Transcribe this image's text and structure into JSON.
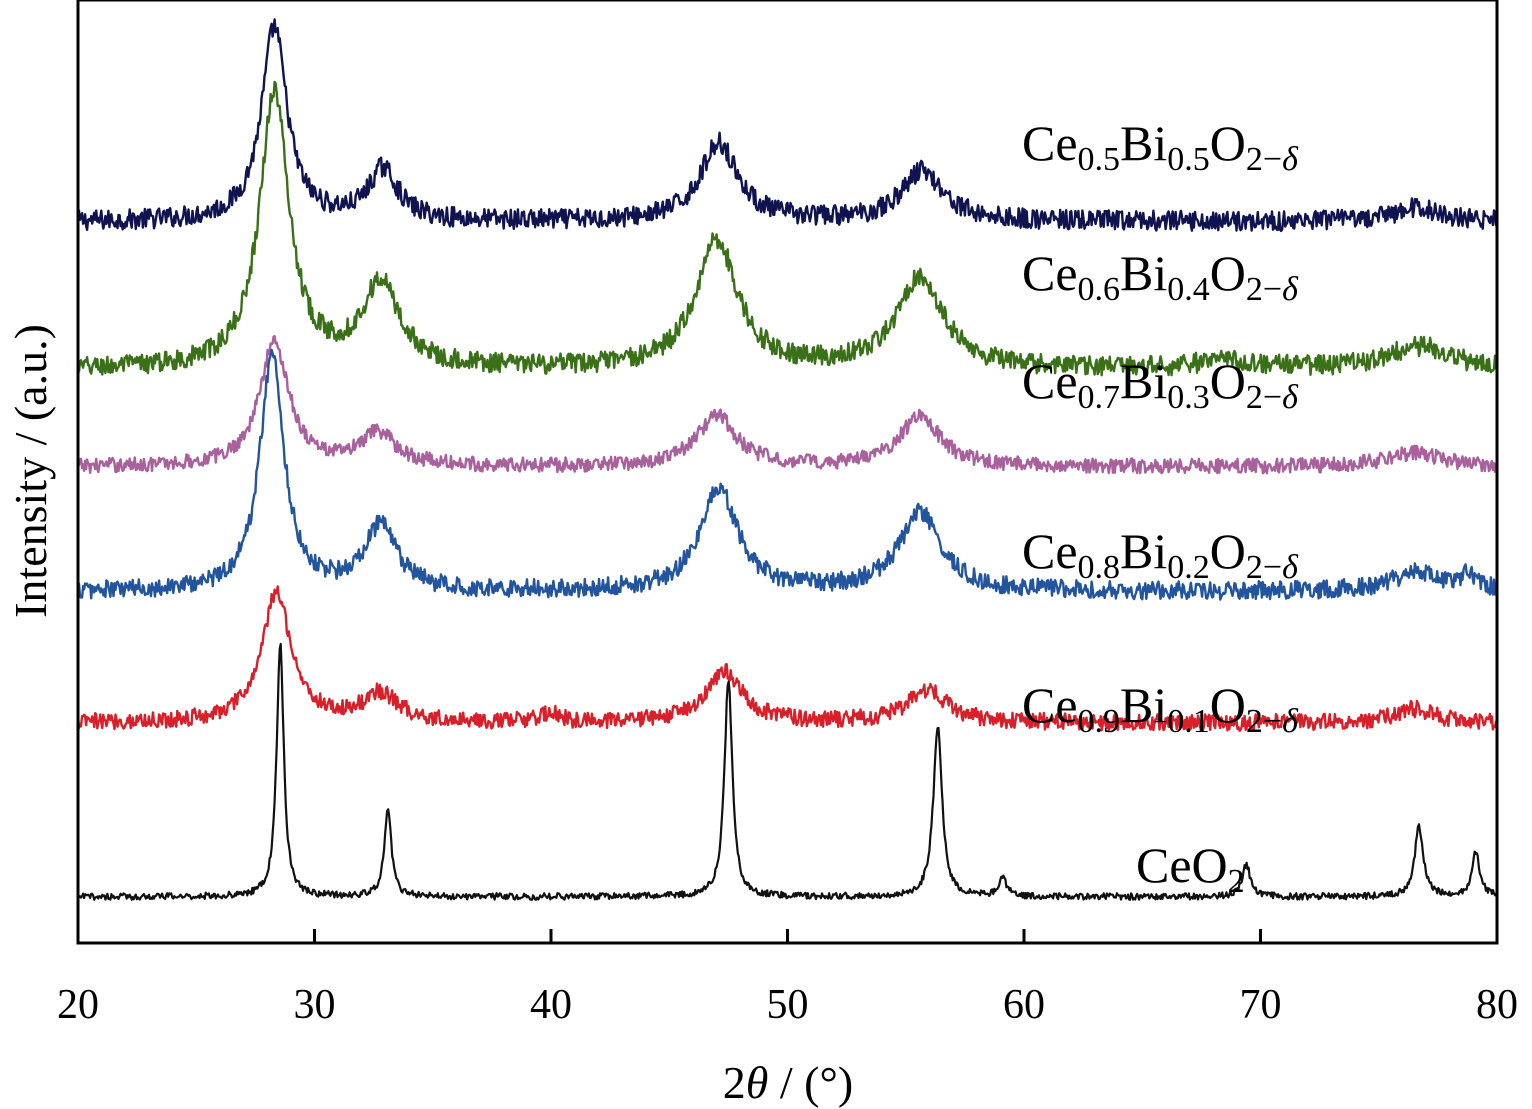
{
  "chart_data": {
    "type": "line",
    "xlabel": {
      "prefix": "2",
      "symbol": "θ",
      "suffix": " / (°)"
    },
    "ylabel": "Intensity / (a.u.)",
    "xlim": [
      20,
      80
    ],
    "xticks": [
      20,
      30,
      40,
      50,
      60,
      70,
      80
    ],
    "yticks": [],
    "grid": false,
    "legend": "none",
    "y_units": "arbitrary (stacked, offset)",
    "series": [
      {
        "name": "Ce0.5Bi0.5O2−δ",
        "label_parts": [
          [
            "Ce",
            0
          ],
          [
            "0.5",
            1
          ],
          [
            "Bi",
            0
          ],
          [
            "0.5",
            1
          ],
          [
            "O",
            0
          ],
          [
            "2−",
            1
          ],
          [
            "δ",
            2
          ]
        ],
        "color": "#0f1450",
        "baseline": 6.2,
        "noise": 0.11,
        "peaks": [
          [
            28.3,
            2.1,
            0.65
          ],
          [
            32.9,
            0.55,
            0.75
          ],
          [
            47.1,
            0.85,
            0.95
          ],
          [
            55.7,
            0.55,
            1.05
          ],
          [
            76.6,
            0.15,
            1.2
          ]
        ],
        "x": [
          20,
          28.3,
          32.9,
          47.1,
          55.7,
          80
        ],
        "y": [
          6.2,
          8.3,
          6.75,
          7.05,
          6.75,
          6.2
        ]
      },
      {
        "name": "Ce0.6Bi0.4O2−δ",
        "label_parts": [
          [
            "Ce",
            0
          ],
          [
            "0.6",
            1
          ],
          [
            "Bi",
            0
          ],
          [
            "0.4",
            1
          ],
          [
            "O",
            0
          ],
          [
            "2−",
            1
          ],
          [
            "δ",
            2
          ]
        ],
        "color": "#3a7118",
        "baseline": 4.6,
        "noise": 0.11,
        "peaks": [
          [
            28.3,
            3.0,
            0.75
          ],
          [
            32.8,
            0.9,
            0.95
          ],
          [
            47.0,
            1.4,
            1.05
          ],
          [
            55.6,
            1.0,
            1.15
          ],
          [
            68.6,
            0.1,
            1.4
          ],
          [
            76.7,
            0.25,
            1.6
          ]
        ],
        "x": [
          20,
          28.3,
          32.8,
          47.0,
          55.6,
          80
        ],
        "y": [
          4.6,
          7.6,
          5.5,
          6.0,
          5.6,
          4.6
        ]
      },
      {
        "name": "Ce0.7Bi0.3O2−δ",
        "label_parts": [
          [
            "Ce",
            0
          ],
          [
            "0.7",
            1
          ],
          [
            "Bi",
            0
          ],
          [
            "0.3",
            1
          ],
          [
            "O",
            0
          ],
          [
            "2−",
            1
          ],
          [
            "δ",
            2
          ]
        ],
        "color": "#a8619c",
        "baseline": 3.55,
        "noise": 0.08,
        "peaks": [
          [
            28.3,
            1.35,
            0.75
          ],
          [
            32.7,
            0.35,
            0.9
          ],
          [
            47.0,
            0.55,
            1.0
          ],
          [
            55.6,
            0.55,
            1.0
          ],
          [
            76.5,
            0.15,
            1.4
          ]
        ],
        "x": [
          20,
          28.3,
          32.7,
          47.0,
          55.6,
          80
        ],
        "y": [
          3.55,
          4.9,
          3.9,
          4.1,
          4.1,
          3.55
        ]
      },
      {
        "name": "Ce0.8Bi0.2O2−δ",
        "label_parts": [
          [
            "Ce",
            0
          ],
          [
            "0.8",
            1
          ],
          [
            "Bi",
            0
          ],
          [
            "0.2",
            1
          ],
          [
            "O",
            0
          ],
          [
            "2−",
            1
          ],
          [
            "δ",
            2
          ]
        ],
        "color": "#23549e",
        "baseline": 2.2,
        "noise": 0.1,
        "peaks": [
          [
            28.2,
            2.55,
            0.62
          ],
          [
            32.8,
            0.7,
            0.8
          ],
          [
            47.1,
            1.1,
            0.95
          ],
          [
            55.6,
            0.85,
            1.05
          ],
          [
            76.6,
            0.2,
            1.3
          ],
          [
            78.8,
            0.15,
            0.4
          ]
        ],
        "x": [
          20,
          28.2,
          32.8,
          47.1,
          55.6,
          80
        ],
        "y": [
          2.2,
          4.75,
          2.9,
          3.3,
          3.05,
          2.2
        ]
      },
      {
        "name": "Ce0.9Bi0.1O2−δ",
        "label_parts": [
          [
            "Ce",
            0
          ],
          [
            "0.9",
            1
          ],
          [
            "Bi",
            0
          ],
          [
            "0.1",
            1
          ],
          [
            "O",
            0
          ],
          [
            "2−",
            1
          ],
          [
            "δ",
            2
          ]
        ],
        "color": "#d9202a",
        "baseline": 0.78,
        "noise": 0.09,
        "peaks": [
          [
            28.4,
            1.4,
            0.75
          ],
          [
            32.8,
            0.3,
            0.9
          ],
          [
            40.0,
            0.1,
            0.4
          ],
          [
            47.3,
            0.55,
            0.95
          ],
          [
            55.9,
            0.35,
            1.0
          ],
          [
            76.5,
            0.15,
            1.0
          ]
        ],
        "x": [
          20,
          28.4,
          32.8,
          47.3,
          55.9,
          80
        ],
        "y": [
          0.78,
          2.18,
          1.08,
          1.33,
          1.13,
          0.78
        ]
      },
      {
        "name": "CeO2",
        "label_parts": [
          [
            "CeO",
            0
          ],
          [
            "2",
            1
          ]
        ],
        "color": "#111111",
        "baseline": -1.1,
        "noise": 0.035,
        "peaks": [
          [
            28.55,
            2.75,
            0.18
          ],
          [
            33.1,
            0.95,
            0.18
          ],
          [
            47.5,
            2.35,
            0.2
          ],
          [
            56.35,
            1.85,
            0.22
          ],
          [
            59.1,
            0.2,
            0.2
          ],
          [
            69.4,
            0.35,
            0.2
          ],
          [
            76.7,
            0.75,
            0.22
          ],
          [
            79.1,
            0.48,
            0.2
          ]
        ],
        "x": [
          20,
          28.55,
          33.1,
          47.5,
          56.35,
          59.1,
          69.4,
          76.7,
          79.1,
          80
        ],
        "y": [
          -1.1,
          1.65,
          -0.15,
          1.25,
          0.75,
          -0.9,
          -0.75,
          -0.35,
          -0.62,
          -1.1
        ]
      }
    ]
  }
}
